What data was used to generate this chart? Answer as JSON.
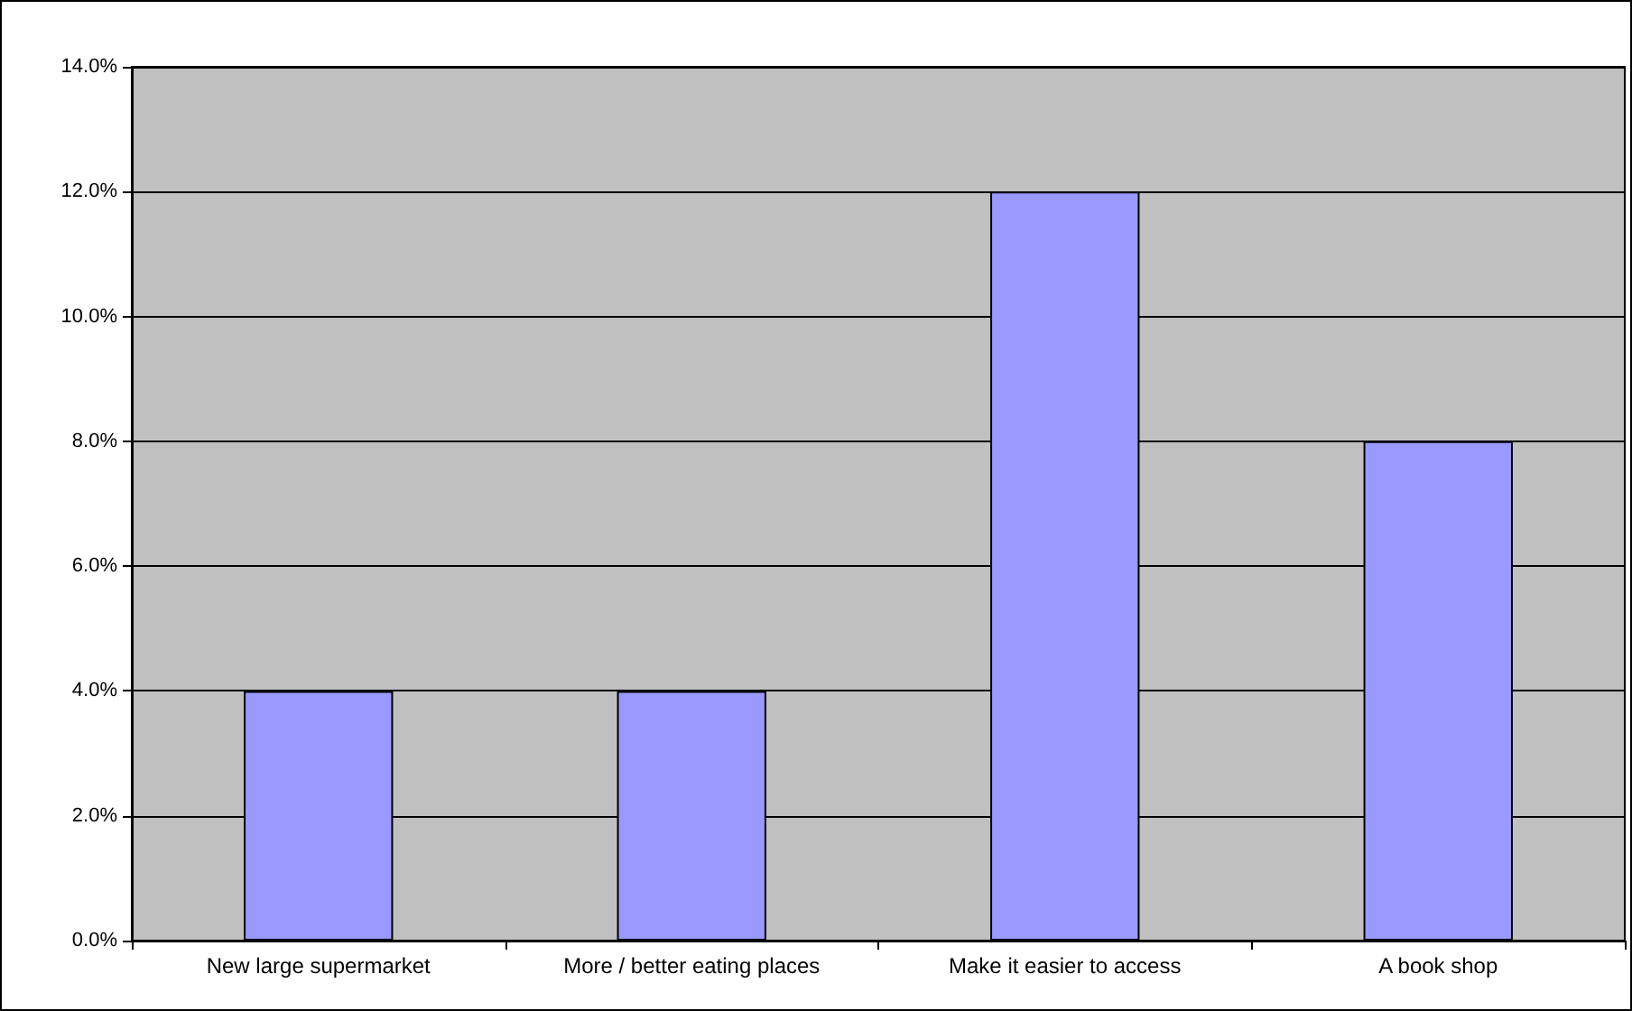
{
  "chart_data": {
    "type": "bar",
    "categories": [
      "New large supermarket",
      "More / better eating places",
      "Make it easier to access",
      "A book shop"
    ],
    "values": [
      4,
      4,
      12,
      8
    ],
    "color": "#9999ff",
    "ylim": [
      0,
      14
    ],
    "yticks": [
      {
        "value": 0,
        "label": "0.0%"
      },
      {
        "value": 2,
        "label": "2.0%"
      },
      {
        "value": 4,
        "label": "4.0%"
      },
      {
        "value": 6,
        "label": "6.0%"
      },
      {
        "value": 8,
        "label": "8.0%"
      },
      {
        "value": 10,
        "label": "10.0%"
      },
      {
        "value": 12,
        "label": "12.0%"
      },
      {
        "value": 14,
        "label": "14.0%"
      }
    ],
    "grid": "y"
  }
}
